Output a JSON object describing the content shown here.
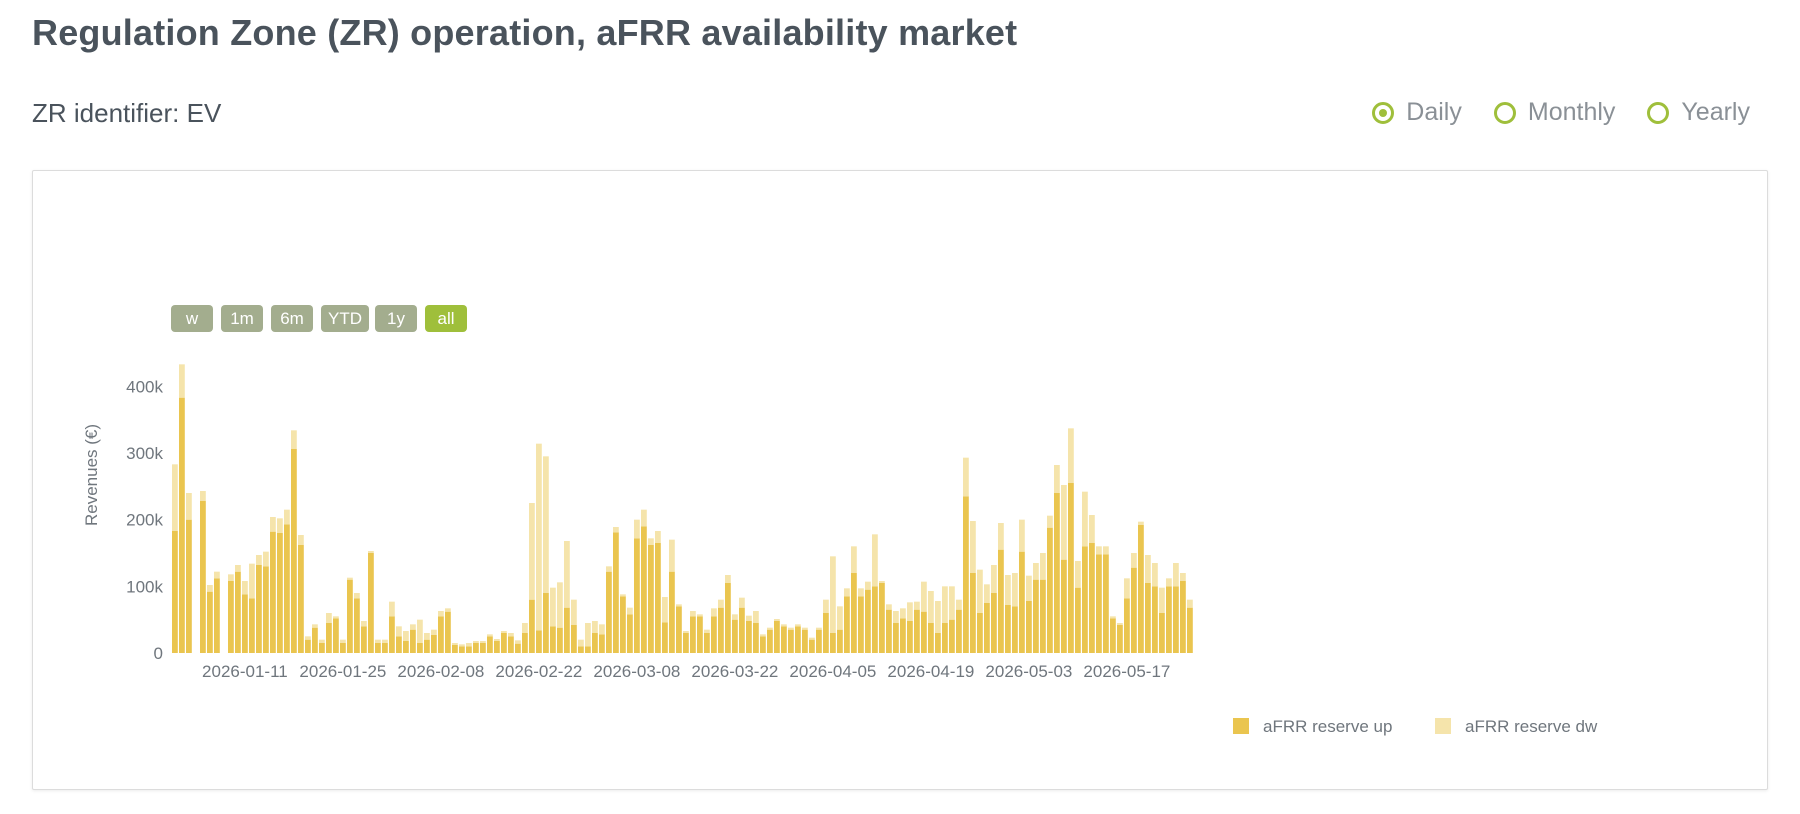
{
  "page": {
    "title": "Regulation Zone (ZR) operation, aFRR availability market",
    "zr_identifier_label": "ZR identifier: EV"
  },
  "period_options": [
    {
      "label": "Daily",
      "selected": true
    },
    {
      "label": "Monthly",
      "selected": false
    },
    {
      "label": "Yearly",
      "selected": false
    }
  ],
  "range_buttons": [
    {
      "label": "w",
      "active": false
    },
    {
      "label": "1m",
      "active": false
    },
    {
      "label": "6m",
      "active": false
    },
    {
      "label": "YTD",
      "active": false
    },
    {
      "label": "1y",
      "active": false
    },
    {
      "label": "all",
      "active": true
    }
  ],
  "colors": {
    "accent_green": "#9fbf3b",
    "button_inactive": "#a3ad8e",
    "reserve_up": "#eac54f",
    "reserve_dw": "#f5e4ab"
  },
  "chart_data": {
    "type": "bar",
    "stacked": true,
    "ylabel": "Revenues (€)",
    "xlabel": "",
    "ylim": [
      0,
      450000
    ],
    "y_ticks": [
      "0",
      "100k",
      "200k",
      "300k",
      "400k"
    ],
    "x_ticks": [
      "2026-01-11",
      "2026-01-25",
      "2026-02-08",
      "2026-02-22",
      "2026-03-08",
      "2026-03-22",
      "2026-04-05",
      "2026-04-19",
      "2026-05-03",
      "2026-05-17"
    ],
    "x_start": "2026-01-01",
    "legend_position": "bottom-right",
    "series": [
      {
        "name": "aFRR reserve up",
        "color": "#eac54f",
        "values": [
          183000,
          383000,
          200000,
          0,
          228000,
          92000,
          112000,
          0,
          108000,
          122000,
          88000,
          82000,
          132000,
          130000,
          182000,
          180000,
          193000,
          306000,
          162000,
          20000,
          38000,
          15000,
          45000,
          52000,
          15000,
          110000,
          82000,
          40000,
          150000,
          15000,
          15000,
          55000,
          25000,
          18000,
          35000,
          15000,
          20000,
          27000,
          55000,
          62000,
          12000,
          10000,
          10000,
          15000,
          15000,
          25000,
          18000,
          30000,
          25000,
          14000,
          30000,
          80000,
          34000,
          90000,
          40000,
          38000,
          68000,
          42000,
          10000,
          10000,
          30000,
          28000,
          122000,
          181000,
          85000,
          58000,
          172000,
          190000,
          162000,
          165000,
          46000,
          122000,
          70000,
          30000,
          55000,
          55000,
          30000,
          55000,
          68000,
          105000,
          50000,
          68000,
          48000,
          45000,
          25000,
          35000,
          48000,
          40000,
          35000,
          40000,
          35000,
          20000,
          35000,
          60000,
          30000,
          35000,
          85000,
          120000,
          85000,
          95000,
          100000,
          105000,
          65000,
          45000,
          52000,
          48000,
          65000,
          62000,
          45000,
          30000,
          45000,
          50000,
          65000,
          235000,
          120000,
          60000,
          75000,
          90000,
          155000,
          72000,
          70000,
          152000,
          78000,
          110000,
          110000,
          188000,
          240000,
          140000,
          255000,
          98000,
          160000,
          165000,
          148000,
          148000,
          52000,
          42000,
          82000,
          128000,
          192000,
          105000,
          100000,
          60000,
          100000,
          100000,
          108000,
          68000
        ]
      },
      {
        "name": "aFRR reserve dw",
        "color": "#f5e4ab",
        "values": [
          100000,
          50000,
          40000,
          0,
          15000,
          10000,
          10000,
          0,
          10000,
          10000,
          20000,
          52000,
          15000,
          22000,
          22000,
          22000,
          22000,
          28000,
          15000,
          5000,
          5000,
          5000,
          15000,
          3000,
          5000,
          3000,
          8000,
          8000,
          3000,
          5000,
          5000,
          22000,
          15000,
          15000,
          8000,
          35000,
          10000,
          8000,
          8000,
          5000,
          3000,
          3000,
          5000,
          3000,
          3000,
          3000,
          3000,
          3000,
          5000,
          5000,
          15000,
          145000,
          280000,
          205000,
          58000,
          68000,
          100000,
          38000,
          10000,
          35000,
          18000,
          15000,
          8000,
          8000,
          3000,
          10000,
          28000,
          25000,
          10000,
          18000,
          38000,
          48000,
          3000,
          3000,
          8000,
          3000,
          5000,
          12000,
          12000,
          12000,
          8000,
          15000,
          8000,
          18000,
          3000,
          3000,
          3000,
          3000,
          3000,
          3000,
          3000,
          3000,
          3000,
          20000,
          115000,
          35000,
          12000,
          40000,
          12000,
          12000,
          78000,
          3000,
          8000,
          18000,
          15000,
          28000,
          12000,
          45000,
          48000,
          48000,
          55000,
          50000,
          15000,
          58000,
          78000,
          65000,
          28000,
          42000,
          40000,
          45000,
          50000,
          48000,
          38000,
          25000,
          40000,
          18000,
          42000,
          112000,
          82000,
          40000,
          82000,
          42000,
          12000,
          12000,
          3000,
          3000,
          30000,
          22000,
          5000,
          42000,
          35000,
          38000,
          12000,
          35000,
          12000,
          12000
        ]
      }
    ]
  }
}
